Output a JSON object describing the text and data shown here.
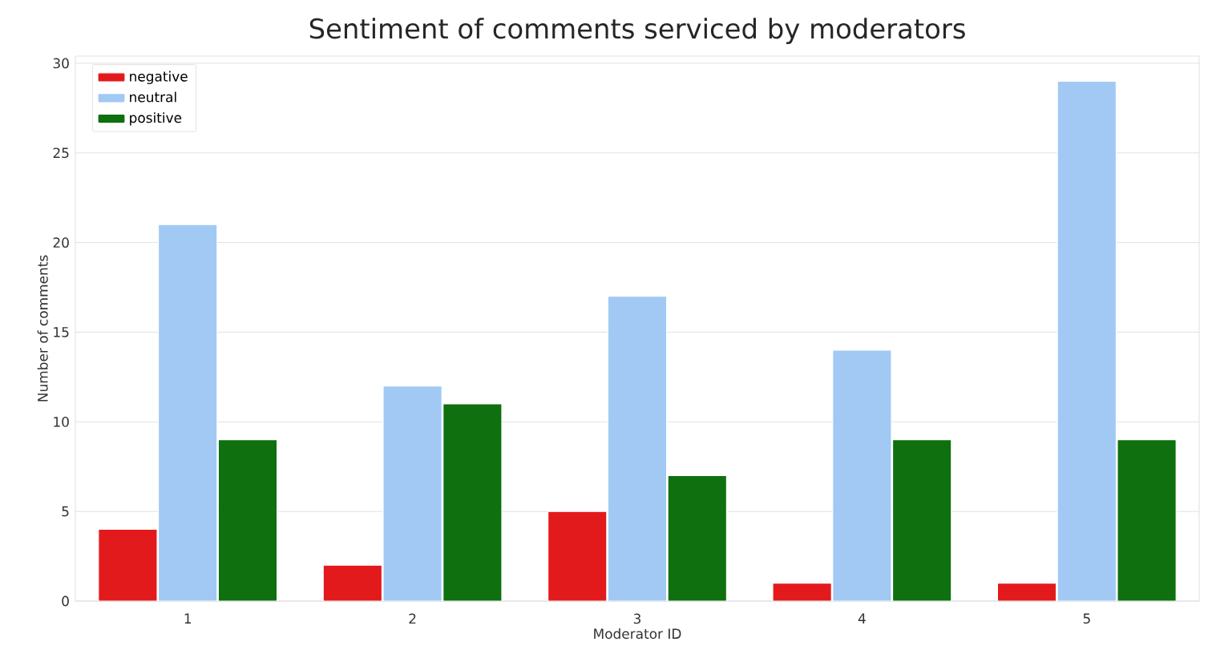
{
  "chart_data": {
    "type": "bar",
    "title": "Sentiment of comments serviced by moderators",
    "xlabel": "Moderator ID",
    "ylabel": "Number of comments",
    "categories": [
      "1",
      "2",
      "3",
      "4",
      "5"
    ],
    "series": [
      {
        "name": "negative",
        "color": "#e31a1c",
        "values": [
          4,
          2,
          5,
          1,
          1
        ]
      },
      {
        "name": "neutral",
        "color": "#a1c9f4",
        "values": [
          21,
          12,
          17,
          14,
          29
        ]
      },
      {
        "name": "positive",
        "color": "#0e700e",
        "values": [
          9,
          11,
          7,
          9,
          9
        ]
      }
    ],
    "ylim": [
      0,
      30.4
    ],
    "yticks": [
      0,
      5,
      10,
      15,
      20,
      25,
      30
    ],
    "grid": "y",
    "legend": "top left"
  }
}
